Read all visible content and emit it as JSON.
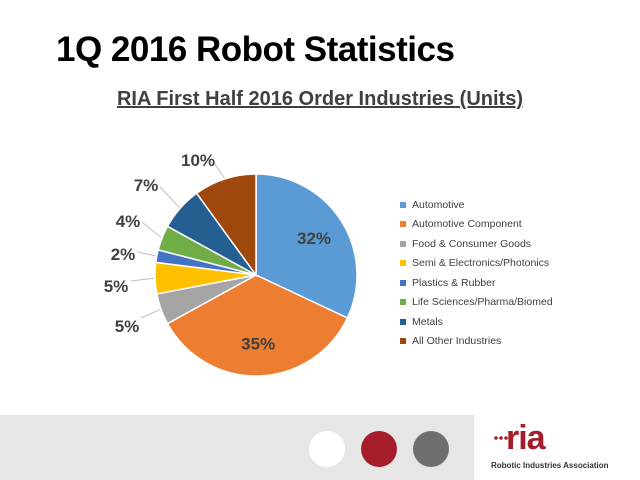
{
  "slide": {
    "title": "1Q 2016 Robot Statistics"
  },
  "chart_data": {
    "type": "pie",
    "title": "RIA First Half 2016 Order Industries (Units)",
    "categories": [
      "Automotive",
      "Automotive Component",
      "Food & Consumer Goods",
      "Semi & Electronics/Photonics",
      "Plastics & Rubber",
      "Life Sciences/Pharma/Biomed",
      "Metals",
      "All Other Industries"
    ],
    "values": [
      32,
      35,
      5,
      5,
      2,
      4,
      7,
      10
    ],
    "data_labels": [
      "32%",
      "35%",
      "5%",
      "5%",
      "2%",
      "4%",
      "7%",
      "10%"
    ],
    "colors": [
      "#5b9bd5",
      "#ed7d31",
      "#a5a5a5",
      "#ffc000",
      "#4472c4",
      "#70ad47",
      "#255e91",
      "#9e480e"
    ],
    "legend_position": "right"
  },
  "footer": {
    "logo_text": "ria",
    "organization": "Robotic Industries Association"
  }
}
